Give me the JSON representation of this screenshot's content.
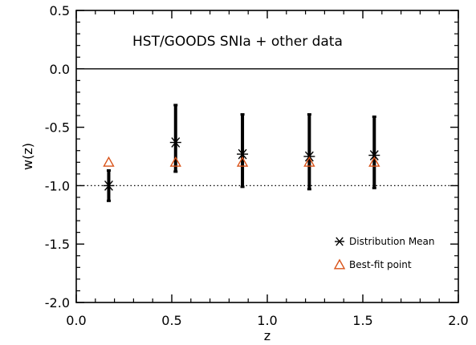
{
  "chart_data": {
    "type": "scatter",
    "title": "",
    "annotation": "HST/GOODS SNIa + other data",
    "xlabel": "z",
    "ylabel": "w(z)",
    "xlim": [
      0.0,
      2.0
    ],
    "ylim": [
      -2.0,
      0.5
    ],
    "x_ticks": [
      0.0,
      0.5,
      1.0,
      1.5,
      2.0
    ],
    "x_tick_labels": [
      "0.0",
      "0.5",
      "1.0",
      "1.5",
      "2.0"
    ],
    "y_ticks": [
      -2.0,
      -1.5,
      -1.0,
      -0.5,
      0.0,
      0.5
    ],
    "y_tick_labels": [
      "-2.0",
      "-1.5",
      "-1.0",
      "-0.5",
      "0.0",
      "0.5"
    ],
    "reference_lines": [
      {
        "y": 0.0,
        "style": "solid"
      },
      {
        "y": -1.0,
        "style": "dotted"
      }
    ],
    "legend_position": "bottom-right",
    "series": [
      {
        "name": "Distribution Mean",
        "marker": "asterisk",
        "color": "#000000",
        "points": [
          {
            "x": 0.17,
            "y": -1.0,
            "y_low": -1.13,
            "y_high": -0.87
          },
          {
            "x": 0.52,
            "y": -0.63,
            "y_low": -0.88,
            "y_high": -0.31
          },
          {
            "x": 0.87,
            "y": -0.73,
            "y_low": -1.01,
            "y_high": -0.39
          },
          {
            "x": 1.22,
            "y": -0.75,
            "y_low": -1.03,
            "y_high": -0.39
          },
          {
            "x": 1.56,
            "y": -0.74,
            "y_low": -1.02,
            "y_high": -0.41
          }
        ]
      },
      {
        "name": "Best-fit point",
        "marker": "triangle",
        "color": "#d95319",
        "points": [
          {
            "x": 0.17,
            "y": -0.8
          },
          {
            "x": 0.52,
            "y": -0.8
          },
          {
            "x": 0.87,
            "y": -0.8
          },
          {
            "x": 1.22,
            "y": -0.8
          },
          {
            "x": 1.56,
            "y": -0.8
          }
        ]
      }
    ]
  }
}
